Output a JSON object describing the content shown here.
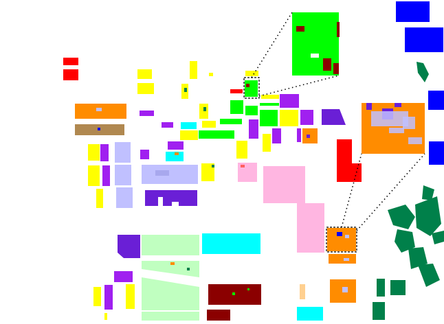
{
  "palette": {
    "red": "#ff0000",
    "yellow": "#ffff00",
    "green": "#00ff00",
    "dark_red": "#8b0000",
    "purple": "#a020f0",
    "violet": "#6a1fd6",
    "lavender": "#c0c0ff",
    "orange": "#ff8c00",
    "brown": "#b08850",
    "cyan": "#00ffff",
    "pink": "#ffb6e1",
    "light_green": "#c0ffc0",
    "blue": "#0000ff",
    "dark_green": "#00804a",
    "peach": "#ffd090",
    "zoom_line": "#000000"
  },
  "legend": []
}
